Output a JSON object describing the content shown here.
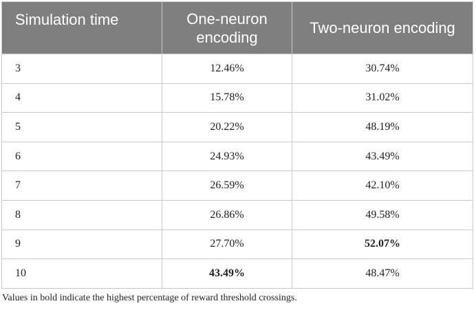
{
  "table": {
    "headers": [
      "Simulation time",
      "One-neuron encoding",
      "Two-neuron encoding"
    ],
    "rows": [
      {
        "time": "3",
        "one": "12.46%",
        "two": "30.74%",
        "one_bold": false,
        "two_bold": false
      },
      {
        "time": "4",
        "one": "15.78%",
        "two": "31.02%",
        "one_bold": false,
        "two_bold": false
      },
      {
        "time": "5",
        "one": "20.22%",
        "two": "48.19%",
        "one_bold": false,
        "two_bold": false
      },
      {
        "time": "6",
        "one": "24.93%",
        "two": "43.49%",
        "one_bold": false,
        "two_bold": false
      },
      {
        "time": "7",
        "one": "26.59%",
        "two": "42.10%",
        "one_bold": false,
        "two_bold": false
      },
      {
        "time": "8",
        "one": "26.86%",
        "two": "49.58%",
        "one_bold": false,
        "two_bold": false
      },
      {
        "time": "9",
        "one": "27.70%",
        "two": "52.07%",
        "one_bold": false,
        "two_bold": true
      },
      {
        "time": "10",
        "one": "43.49%",
        "two": "48.47%",
        "one_bold": true,
        "two_bold": false
      }
    ]
  },
  "footnote": "Values in bold indicate the highest percentage of reward threshold crossings.",
  "colors": {
    "header_bg": "#7f7f7f",
    "header_text": "#ffffff",
    "border": "#c9c9c9"
  }
}
